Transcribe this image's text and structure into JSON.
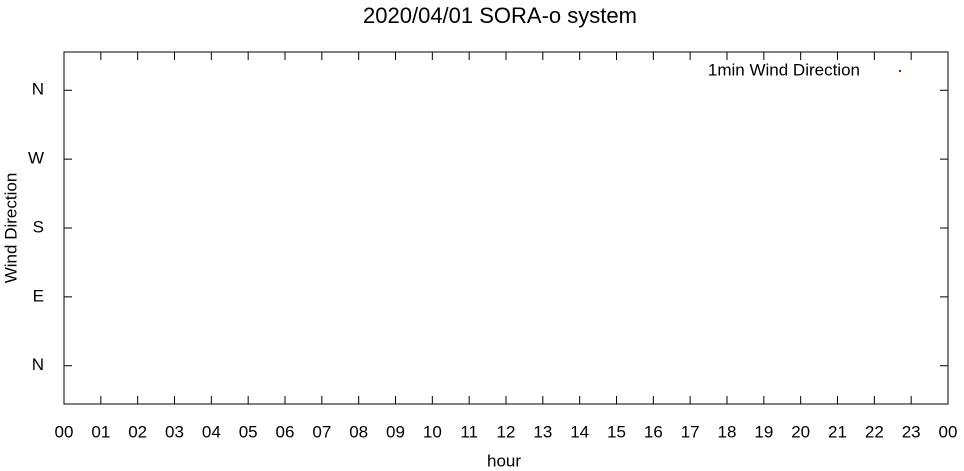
{
  "chart_data": {
    "type": "scatter",
    "title": "2020/04/01 SORA-o system",
    "x_label": "hour",
    "y_label": "Wind Direction",
    "xlim": [
      0,
      24
    ],
    "ylim": [
      -50,
      410
    ],
    "xticks": [
      {
        "value": 0,
        "label": "00"
      },
      {
        "value": 1,
        "label": "01"
      },
      {
        "value": 2,
        "label": "02"
      },
      {
        "value": 3,
        "label": "03"
      },
      {
        "value": 4,
        "label": "04"
      },
      {
        "value": 5,
        "label": "05"
      },
      {
        "value": 6,
        "label": "06"
      },
      {
        "value": 7,
        "label": "07"
      },
      {
        "value": 8,
        "label": "08"
      },
      {
        "value": 9,
        "label": "09"
      },
      {
        "value": 10,
        "label": "10"
      },
      {
        "value": 11,
        "label": "11"
      },
      {
        "value": 12,
        "label": "12"
      },
      {
        "value": 13,
        "label": "13"
      },
      {
        "value": 14,
        "label": "14"
      },
      {
        "value": 15,
        "label": "15"
      },
      {
        "value": 16,
        "label": "16"
      },
      {
        "value": 17,
        "label": "17"
      },
      {
        "value": 18,
        "label": "18"
      },
      {
        "value": 19,
        "label": "19"
      },
      {
        "value": 20,
        "label": "20"
      },
      {
        "value": 21,
        "label": "21"
      },
      {
        "value": 22,
        "label": "22"
      },
      {
        "value": 23,
        "label": "23"
      },
      {
        "value": 24,
        "label": "00"
      }
    ],
    "yticks": [
      {
        "value": 0,
        "label": "N"
      },
      {
        "value": 90,
        "label": "E"
      },
      {
        "value": 180,
        "label": "S"
      },
      {
        "value": 270,
        "label": "W"
      },
      {
        "value": 360,
        "label": "N"
      }
    ],
    "series": [
      {
        "name": "1min Wind Direction",
        "color": "#c00000",
        "x": [],
        "values": []
      }
    ]
  }
}
